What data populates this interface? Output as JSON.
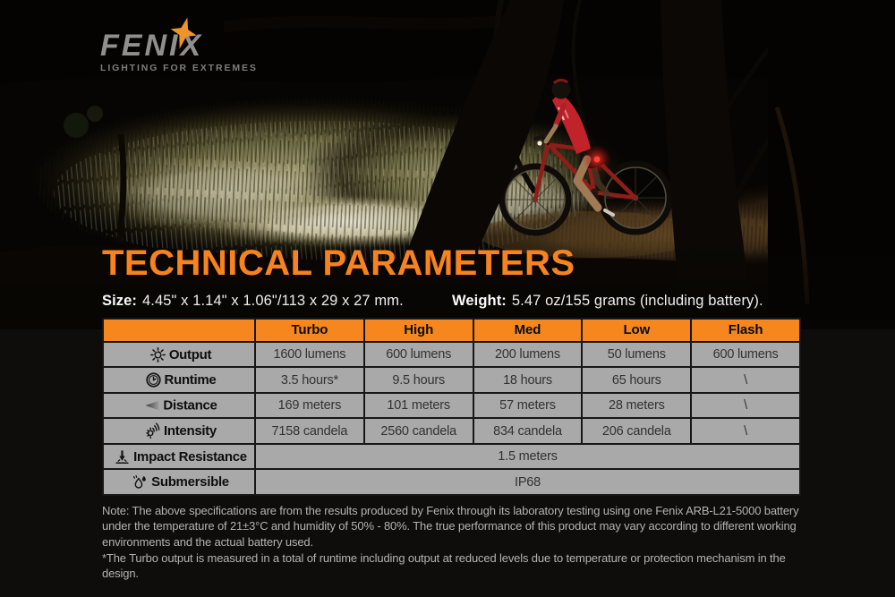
{
  "brand": {
    "logo_text": "FENIX",
    "tagline": "LIGHTING FOR EXTREMES"
  },
  "header": {
    "title": "TECHNICAL PARAMETERS"
  },
  "specs_line": {
    "size_label": "Size:",
    "size_value": "4.45\" x 1.14\" x 1.06\"/113 x 29 x 27 mm.",
    "weight_label": "Weight:",
    "weight_value": "5.47 oz/155 grams (including battery)."
  },
  "table": {
    "columns": [
      "Turbo",
      "High",
      "Med",
      "Low",
      "Flash"
    ],
    "rows": [
      {
        "icon": "sun-icon",
        "label": "Output",
        "values": [
          "1600 lumens",
          "600 lumens",
          "200 lumens",
          "50 lumens",
          "600 lumens"
        ]
      },
      {
        "icon": "clock-icon",
        "label": "Runtime",
        "values": [
          "3.5 hours*",
          "9.5 hours",
          "18 hours",
          "65 hours",
          "\\"
        ]
      },
      {
        "icon": "beam-icon",
        "label": "Distance",
        "values": [
          "169 meters",
          "101 meters",
          "57 meters",
          "28 meters",
          "\\"
        ]
      },
      {
        "icon": "shine-icon",
        "label": "Intensity",
        "values": [
          "7158 candela",
          "2560 candela",
          "834 candela",
          "206 candela",
          "\\"
        ]
      },
      {
        "icon": "impact-icon",
        "label": "Impact Resistance",
        "span_value": "1.5 meters"
      },
      {
        "icon": "drops-icon",
        "label": "Submersible",
        "span_value": "IP68"
      }
    ]
  },
  "notes": [
    "Note: The above specifications are from the results produced by Fenix through its laboratory testing using one Fenix ARB-L21-5000 battery under the temperature of 21±3°C and humidity of 50% - 80%. The true performance of this product may vary according to different working environments and the actual battery used.",
    "*The Turbo output is measured in a total of runtime including output at reduced levels due to temperature or protection mechanism in the design."
  ],
  "colors": {
    "accent_orange": "#f6831f",
    "table_header_bg": "#f6871e",
    "row_bg": "#a9a9a9",
    "table_border": "#171717",
    "note_text": "#b4b2af",
    "logo_gray": "#8f8f8f",
    "star_orange": "#ef9428"
  }
}
